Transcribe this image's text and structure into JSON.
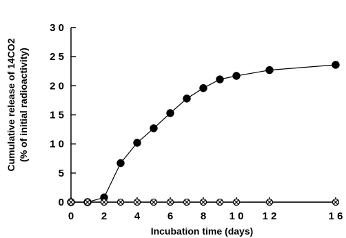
{
  "chart_data": {
    "type": "scatter",
    "xlabel": "Incubation   time   (days)",
    "ylabel_lines": [
      "Cumulative   release   of   14CO2",
      "(%   of   initial   radioactivity)"
    ],
    "xlim": [
      0,
      16
    ],
    "ylim": [
      0,
      30
    ],
    "x_ticks": [
      0,
      2,
      4,
      6,
      8,
      10,
      12,
      16
    ],
    "x_tick_labels": [
      "0",
      "2",
      "4",
      "6",
      "8",
      "1 0",
      "1 2",
      "1 6"
    ],
    "y_ticks": [
      0,
      5,
      10,
      15,
      20,
      25,
      30
    ],
    "y_tick_labels": [
      "0",
      "5",
      "1 0",
      "1 5",
      "2 0",
      "2 5",
      "3 0"
    ],
    "grid": false,
    "series": [
      {
        "marker": "filled-circle",
        "line": true,
        "x": [
          0,
          1,
          2,
          3,
          4,
          5,
          6,
          7,
          8,
          9,
          10,
          12,
          16
        ],
        "y": [
          0,
          0,
          0.8,
          6.7,
          10.2,
          12.7,
          15.3,
          17.8,
          19.6,
          21.1,
          21.7,
          22.7,
          23.6
        ]
      },
      {
        "marker": "circle-x",
        "line": true,
        "x": [
          0,
          1,
          2,
          3,
          4,
          5,
          6,
          7,
          8,
          9,
          10,
          12,
          16
        ],
        "y": [
          0,
          0,
          0,
          0,
          0,
          0,
          0,
          0,
          0,
          0,
          0,
          0,
          0
        ]
      }
    ]
  }
}
